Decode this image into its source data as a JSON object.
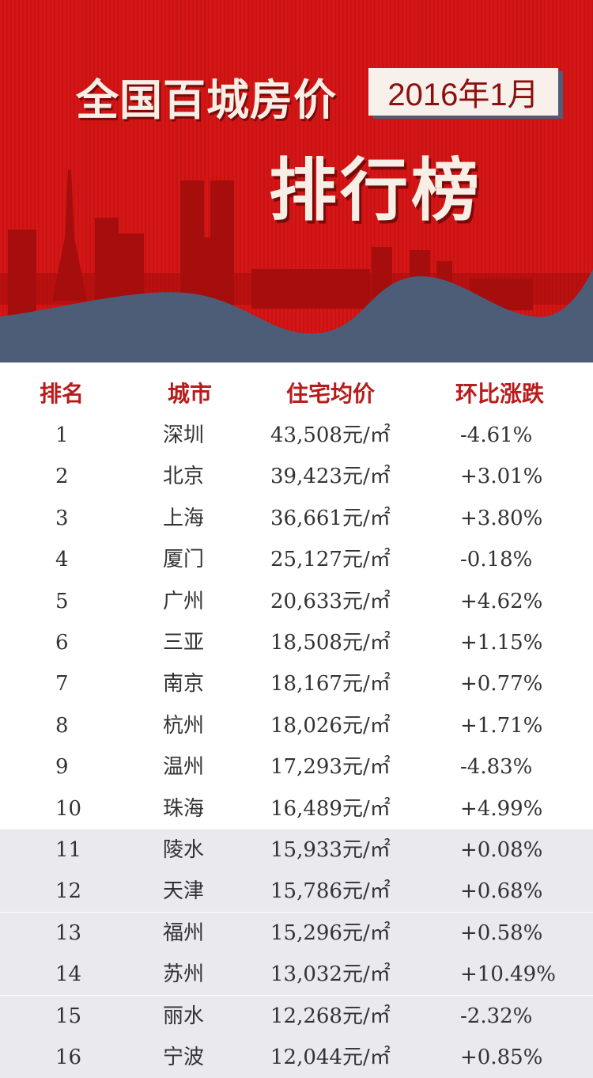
{
  "header": {
    "title": "全国百城房价",
    "date": "2016年1月",
    "subtitle": "排行榜"
  },
  "colors": {
    "banner_red": "#d41616",
    "hill_blue": "#4d5d78",
    "header_text": "#b81c1c"
  },
  "table": {
    "columns": [
      "排名",
      "城市",
      "住宅均价",
      "环比涨跌"
    ],
    "rows": [
      [
        "1",
        "深圳",
        "43,508元/㎡",
        "-4.61%"
      ],
      [
        "2",
        "北京",
        "39,423元/㎡",
        "+3.01%"
      ],
      [
        "3",
        "上海",
        "36,661元/㎡",
        "+3.80%"
      ],
      [
        "4",
        "厦门",
        "25,127元/㎡",
        "-0.18%"
      ],
      [
        "5",
        "广州",
        "20,633元/㎡",
        "+4.62%"
      ],
      [
        "6",
        "三亚",
        "18,508元/㎡",
        "+1.15%"
      ],
      [
        "7",
        "南京",
        "18,167元/㎡",
        "+0.77%"
      ],
      [
        "8",
        "杭州",
        "18,026元/㎡",
        "+1.71%"
      ],
      [
        "9",
        "温州",
        "17,293元/㎡",
        "-4.83%"
      ],
      [
        "10",
        "珠海",
        "16,489元/㎡",
        "+4.99%"
      ],
      [
        "11",
        "陵水",
        "15,933元/㎡",
        "+0.08%"
      ],
      [
        "12",
        "天津",
        "15,786元/㎡",
        "+0.68%"
      ],
      [
        "13",
        "福州",
        "15,296元/㎡",
        "+0.58%"
      ],
      [
        "14",
        "苏州",
        "13,032元/㎡",
        "+10.49%"
      ],
      [
        "15",
        "丽水",
        "12,268元/㎡",
        "-2.32%"
      ],
      [
        "16",
        "宁波",
        "12,044元/㎡",
        "+0.85%"
      ]
    ]
  }
}
